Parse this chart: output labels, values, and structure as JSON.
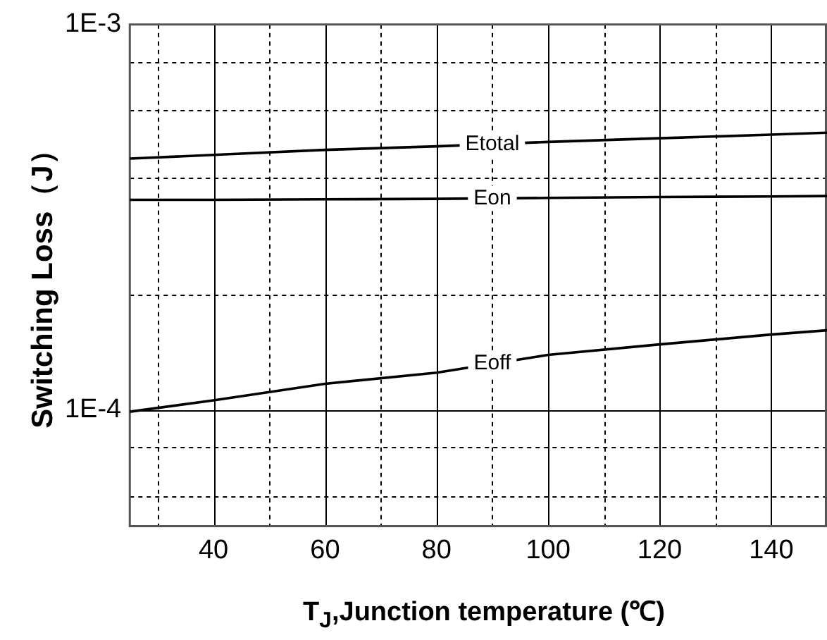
{
  "chart_data": {
    "type": "line",
    "xlabel": "T$_{J}$,Junction temperature (℃)",
    "ylabel": "Switching Loss（J）",
    "x": [
      25,
      40,
      60,
      80,
      100,
      120,
      140,
      150
    ],
    "series": [
      {
        "name": "Etotal",
        "color": "#000000",
        "values": [
          0.000449,
          0.000459,
          0.000473,
          0.000483,
          0.000496,
          0.000507,
          0.000518,
          0.000524
        ]
      },
      {
        "name": "Eon",
        "color": "#000000",
        "values": [
          0.000351,
          0.000351,
          0.000352,
          0.000353,
          0.000355,
          0.000357,
          0.000358,
          0.000359
        ]
      },
      {
        "name": "Eoff",
        "color": "#000000",
        "values": [
          9.9e-05,
          0.000106,
          0.000117,
          0.000125,
          0.000139,
          0.000148,
          0.000157,
          0.000161
        ]
      }
    ],
    "xlim": [
      25,
      150
    ],
    "xticks": [
      {
        "value": 30,
        "label": null
      },
      40,
      {
        "value": 50,
        "label": null
      },
      60,
      {
        "value": 70,
        "label": null
      },
      80,
      {
        "value": 90,
        "label": null
      },
      100,
      {
        "value": 110,
        "label": null
      },
      120,
      {
        "value": 130,
        "label": null
      },
      140
    ],
    "ylim": [
      5e-05,
      0.001
    ],
    "yticks": [
      {
        "value": 6e-05,
        "label": null
      },
      {
        "value": 8e-05,
        "label": null
      },
      {
        "value": 0.0001,
        "label": "1E-4"
      },
      {
        "value": 0.0002,
        "label": null
      },
      {
        "value": 0.0004,
        "label": null
      },
      {
        "value": 0.0006,
        "label": null
      },
      {
        "value": 0.0008,
        "label": null
      },
      {
        "value": 0.001,
        "label": "1E-3"
      }
    ],
    "log": "y",
    "grid": true
  }
}
